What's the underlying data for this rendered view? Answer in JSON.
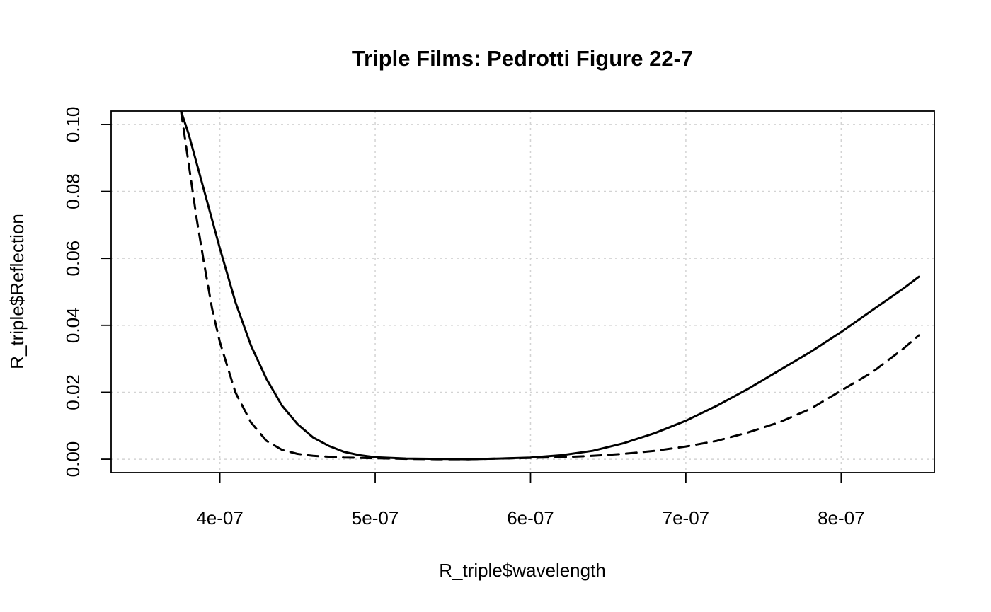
{
  "chart_data": {
    "type": "line",
    "title": "Triple Films: Pedrotti Figure 22-7",
    "xlabel": "R_triple$wavelength",
    "ylabel": "R_triple$Reflection",
    "xlim": [
      3.3e-07,
      8.6e-07
    ],
    "ylim": [
      -0.004,
      0.104
    ],
    "x_ticks": [
      4e-07,
      5e-07,
      6e-07,
      7e-07,
      8e-07
    ],
    "x_tick_labels": [
      "4e-07",
      "5e-07",
      "6e-07",
      "7e-07",
      "8e-07"
    ],
    "y_ticks": [
      0,
      0.02,
      0.04,
      0.06,
      0.08,
      0.1
    ],
    "y_tick_labels": [
      "0.00",
      "0.02",
      "0.04",
      "0.06",
      "0.08",
      "0.10"
    ],
    "grid": true,
    "series": [
      {
        "line_style": "solid",
        "x": [
          3.75e-07,
          3.8e-07,
          3.9e-07,
          4e-07,
          4.1e-07,
          4.2e-07,
          4.3e-07,
          4.4e-07,
          4.5e-07,
          4.6e-07,
          4.7e-07,
          4.8e-07,
          4.9e-07,
          5e-07,
          5.2e-07,
          5.4e-07,
          5.6e-07,
          5.8e-07,
          6e-07,
          6.2e-07,
          6.4e-07,
          6.6e-07,
          6.8e-07,
          7e-07,
          7.2e-07,
          7.4e-07,
          7.6e-07,
          7.8e-07,
          8e-07,
          8.2e-07,
          8.4e-07,
          8.5e-07
        ],
        "y": [
          0.104,
          0.097,
          0.08,
          0.063,
          0.047,
          0.034,
          0.024,
          0.016,
          0.0105,
          0.0065,
          0.004,
          0.0022,
          0.0012,
          0.0006,
          0.0002,
          0.0001,
          0.0,
          0.0002,
          0.0005,
          0.0012,
          0.0025,
          0.0048,
          0.0078,
          0.0115,
          0.016,
          0.021,
          0.0265,
          0.032,
          0.038,
          0.0445,
          0.051,
          0.0545
        ]
      },
      {
        "line_style": "dashed",
        "x": [
          3.75e-07,
          3.8e-07,
          3.85e-07,
          3.9e-07,
          3.95e-07,
          4e-07,
          4.1e-07,
          4.2e-07,
          4.3e-07,
          4.4e-07,
          4.5e-07,
          4.6e-07,
          4.8e-07,
          5e-07,
          5.2e-07,
          5.4e-07,
          5.6e-07,
          5.8e-07,
          6e-07,
          6.2e-07,
          6.4e-07,
          6.6e-07,
          6.8e-07,
          7e-07,
          7.2e-07,
          7.4e-07,
          7.6e-07,
          7.8e-07,
          8e-07,
          8.2e-07,
          8.4e-07,
          8.5e-07
        ],
        "y": [
          0.104,
          0.088,
          0.072,
          0.058,
          0.045,
          0.035,
          0.02,
          0.011,
          0.0055,
          0.0028,
          0.0016,
          0.001,
          0.0005,
          0.0003,
          0.0001,
          0.0,
          0.0,
          0.0002,
          0.0004,
          0.0006,
          0.001,
          0.0016,
          0.0025,
          0.0038,
          0.0055,
          0.008,
          0.011,
          0.015,
          0.0205,
          0.026,
          0.033,
          0.037
        ]
      }
    ]
  }
}
